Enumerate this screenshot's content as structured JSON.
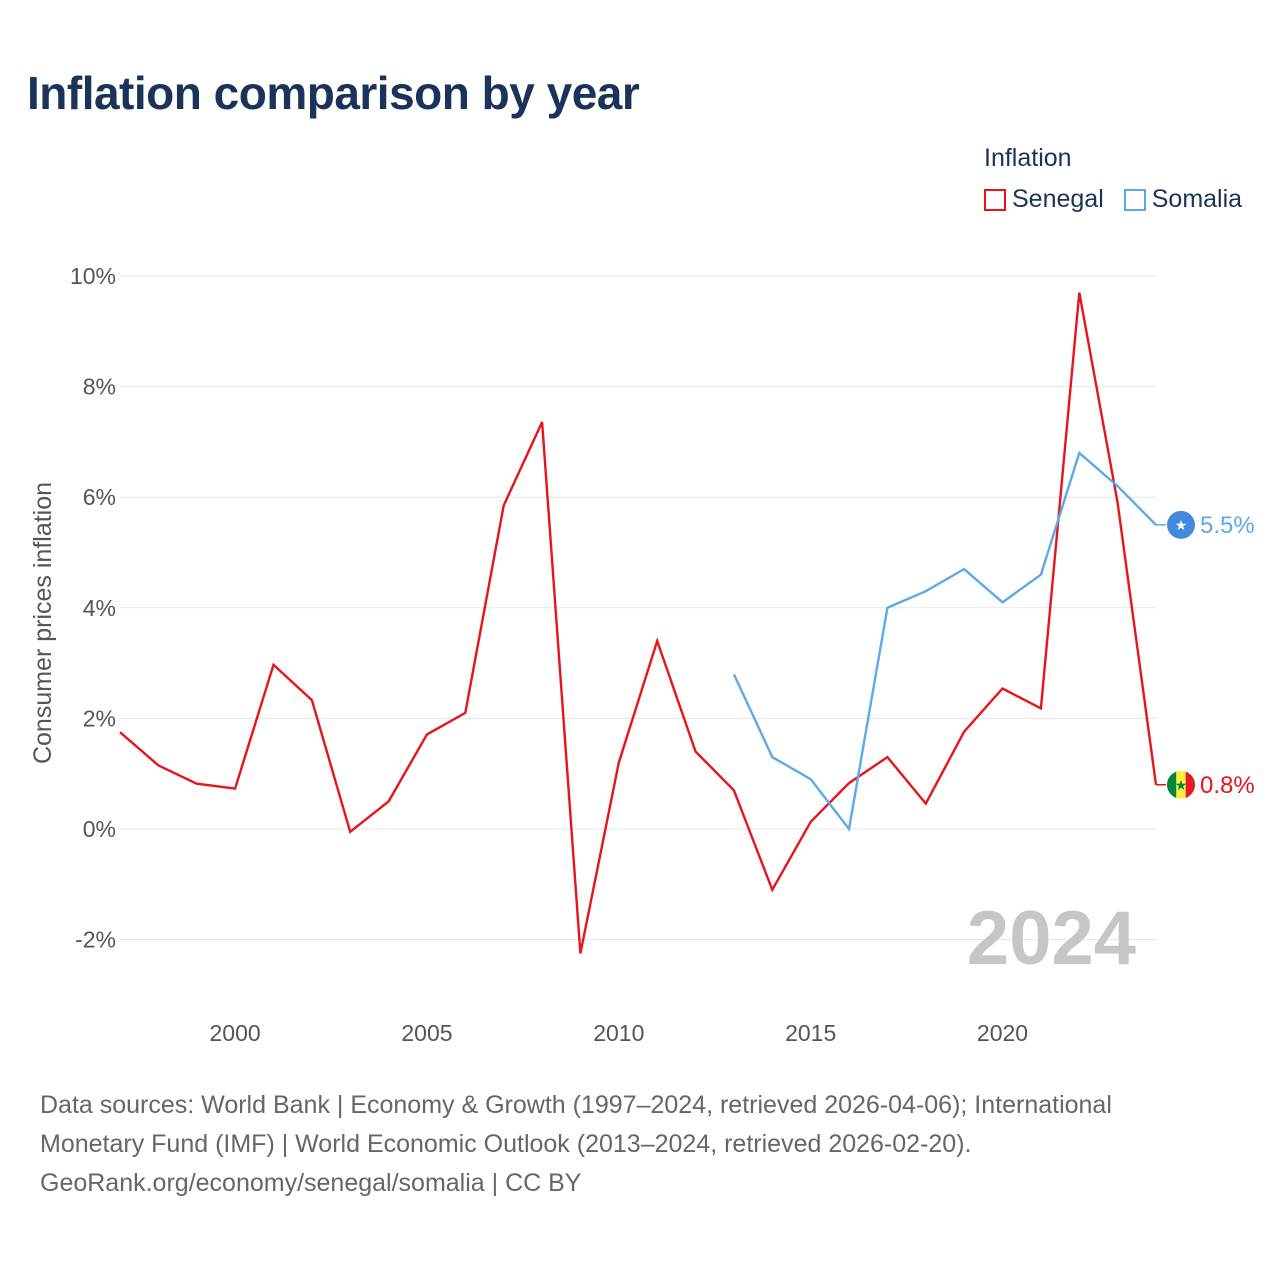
{
  "chart_data": {
    "type": "line",
    "title": "Inflation comparison by year",
    "legend_title": "Inflation",
    "legend_position": "top-right",
    "ylabel": "Consumer prices inflation",
    "xlabel": "",
    "xlim": [
      1997,
      2024
    ],
    "ylim": [
      -3,
      10.5
    ],
    "x_ticks": [
      {
        "value": 2000,
        "label": "2000"
      },
      {
        "value": 2005,
        "label": "2005"
      },
      {
        "value": 2010,
        "label": "2010"
      },
      {
        "value": 2015,
        "label": "2015"
      },
      {
        "value": 2020,
        "label": "2020"
      }
    ],
    "y_ticks": [
      {
        "value": 10,
        "label": "10%"
      },
      {
        "value": 8,
        "label": "8%"
      },
      {
        "value": 6,
        "label": "6%"
      },
      {
        "value": 4,
        "label": "4%"
      },
      {
        "value": 2,
        "label": "2%"
      },
      {
        "value": 0,
        "label": "0%"
      },
      {
        "value": -2,
        "label": "-2%"
      }
    ],
    "grid": true,
    "watermark_year": "2024",
    "series": [
      {
        "name": "Senegal",
        "color": "#e8141c",
        "end_label": "0.8%",
        "flag": "senegal-flag",
        "x": [
          1997,
          1998,
          1999,
          2000,
          2001,
          2002,
          2003,
          2004,
          2005,
          2006,
          2007,
          2008,
          2009,
          2010,
          2011,
          2012,
          2013,
          2014,
          2015,
          2016,
          2017,
          2018,
          2019,
          2020,
          2021,
          2022,
          2023,
          2024
        ],
        "values": [
          1.75,
          1.15,
          0.82,
          0.73,
          2.97,
          2.33,
          -0.05,
          0.5,
          1.71,
          2.1,
          5.85,
          7.36,
          -2.25,
          1.2,
          3.4,
          1.4,
          0.7,
          -1.1,
          0.13,
          0.83,
          1.3,
          0.46,
          1.76,
          2.54,
          2.18,
          9.7,
          5.9,
          0.8
        ]
      },
      {
        "name": "Somalia",
        "color": "#5da9e9",
        "end_label": "5.5%",
        "flag": "somalia-flag",
        "x": [
          2013,
          2014,
          2015,
          2016,
          2017,
          2018,
          2019,
          2020,
          2021,
          2022,
          2023,
          2024
        ],
        "values": [
          2.8,
          1.3,
          0.9,
          0.0,
          4.0,
          4.3,
          4.7,
          4.1,
          4.6,
          6.8,
          6.2,
          5.5
        ]
      }
    ]
  },
  "source": {
    "line1": "Data sources: World Bank | Economy & Growth (1997–2024, retrieved 2026-04-06); International",
    "line2": "Monetary Fund (IMF) | World Economic Outlook (2013–2024, retrieved 2026-02-20).",
    "line3": "GeoRank.org/economy/senegal/somalia | CC BY"
  }
}
